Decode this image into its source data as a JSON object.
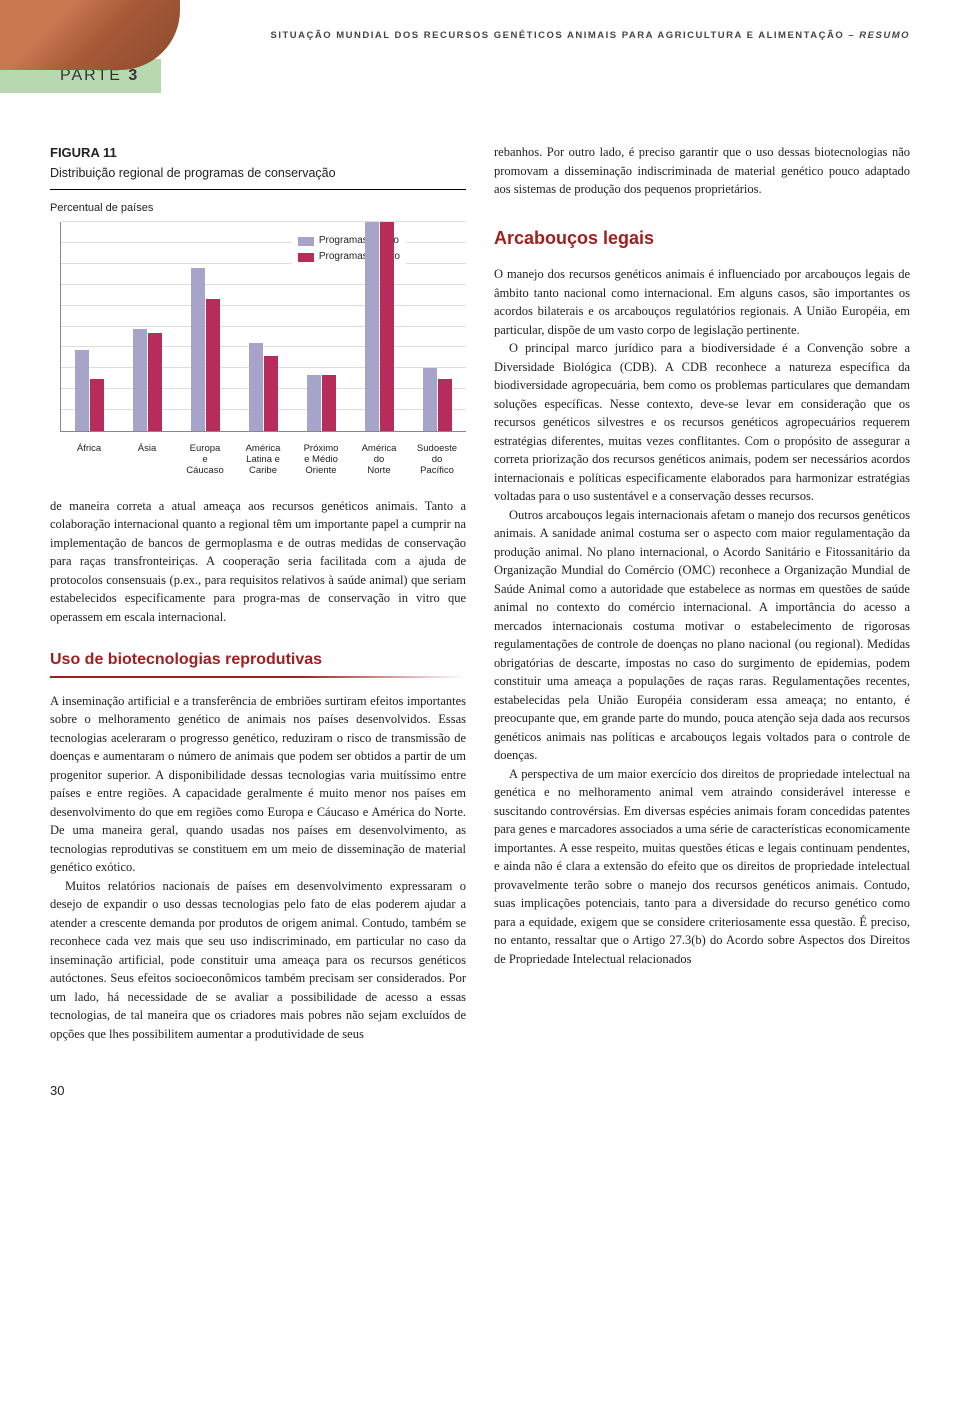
{
  "running_head": "SITUAÇÃO MUNDIAL DOS RECURSOS GENÉTICOS ANIMAIS PARA AGRICULTURA E ALIMENTAÇÃO",
  "running_head_suffix": "RESUMO",
  "parte_label": "PARTE",
  "parte_num": "3",
  "figure": {
    "label": "FIGURA 11",
    "title": "Distribuição regional de programas de conservação",
    "subtitle": "Percentual de países",
    "legend": [
      "Programas in vivo",
      "Programas in vitro"
    ],
    "categories": [
      "África",
      "Ásia",
      "Europa\ne\nCáucaso",
      "América\nLatina e\nCaribe",
      "Próximo\ne Médio\nOriente",
      "América\ndo\nNorte",
      "Sudoeste\ndo\nPacífico"
    ],
    "series_vivo": [
      39,
      49,
      78,
      42,
      27,
      100,
      30
    ],
    "series_vitro": [
      25,
      47,
      63,
      36,
      27,
      100,
      25
    ],
    "colors": {
      "vivo": "#a6a4c9",
      "vitro": "#b82c5b"
    },
    "ylim": 100,
    "gridline_color": "#dddddd"
  },
  "left": {
    "p1": "de maneira correta a atual ameaça aos recursos genéticos animais. Tanto a colaboração internacional quanto a regional têm um importante papel a cumprir na implementação de bancos de germoplasma e de outras medidas de conservação para raças transfronteiriças. A cooperação seria facilitada com a ajuda de protocolos consensuais (p.ex., para requisitos relativos à saúde animal) que seriam estabelecidos especificamente para progra-mas de conservação in vitro que operassem em escala internacional.",
    "h2": "Uso de biotecnologias reprodutivas",
    "p2": "A inseminação artificial e a transferência de embriões surtiram efeitos importantes sobre o melhoramento genético de animais nos países desenvolvidos. Essas tecnologias aceleraram o progresso genético, reduziram o risco de transmissão de doenças e aumentaram o número de animais que podem ser obtidos a partir de um progenitor superior. A disponibilidade dessas tecnologias varia muitíssimo entre países e entre regiões. A capacidade geralmente é muito menor nos países em desenvolvimento do que em regiões como Europa e Cáucaso e América do Norte. De uma maneira geral, quando usadas nos países em desenvolvimento, as tecnologias reprodutivas se constituem em um meio de disseminação de material genético exótico.",
    "p3": "Muitos relatórios nacionais de países em desenvolvimento expressaram o desejo de expandir o uso dessas tecnologias pelo fato de elas poderem ajudar a atender a crescente demanda por produtos de origem animal. Contudo, também se reconhece cada vez mais que seu uso indiscriminado, em particular no caso da inseminação artificial, pode constituir uma ameaça para os recursos genéticos autóctones. Seus efeitos socioeconômicos também precisam ser considerados. Por um lado, há necessidade de se avaliar a possibilidade de acesso a essas tecnologias, de tal maneira que os criadores mais pobres não sejam excluídos de opções que lhes possibilitem aumentar a produtividade de seus"
  },
  "right": {
    "p0": "rebanhos. Por outro lado, é preciso garantir que o uso dessas biotecnologias não promovam a disseminação indiscriminada de material genético pouco adaptado aos sistemas de produção dos pequenos proprietários.",
    "section": "Arcabouços legais",
    "p1": "O manejo dos recursos genéticos animais é influenciado por arcabouços legais de âmbito tanto nacional como internacional. Em alguns casos, são importantes os acordos bilaterais e os arcabouços regulatórios regionais. A União Européia, em particular, dispõe de um vasto corpo de legislação pertinente.",
    "p2": "O principal marco jurídico para a biodiversidade é a Convenção sobre a Diversidade Biológica (CDB). A CDB reconhece a natureza específica da biodiversidade agropecuária, bem como os problemas particulares que demandam soluções específicas. Nesse contexto, deve-se levar em consideração que os recursos genéticos silvestres e os recursos genéticos agropecuários requerem estratégias diferentes, muitas vezes conflitantes. Com o propósito de assegurar a correta priorização dos recursos genéticos animais, podem ser necessários acordos internacionais e políticas especificamente elaborados para harmonizar estratégias voltadas para o uso sustentável e a conservação desses recursos.",
    "p3": "Outros arcabouços legais internacionais afetam o manejo dos recursos genéticos animais. A sanidade animal costuma ser o aspecto com maior regulamentação da produção animal. No plano internacional, o Acordo Sanitário e Fitossanitário da Organização Mundial do Comércio (OMC) reconhece a Organização Mundial de Saúde Animal como a autoridade que estabelece as normas em questões de saúde animal no contexto do comércio internacional. A importância do acesso a mercados internacionais costuma motivar o estabelecimento de rigorosas regulamentações de controle de doenças no plano nacional (ou regional). Medidas obrigatórias de descarte, impostas no caso do surgimento de epidemias, podem constituir uma ameaça a populações de raças raras. Regulamentações recentes, estabelecidas pela União Européia consideram essa ameaça; no entanto, é preocupante que, em grande parte do mundo, pouca atenção seja dada aos recursos genéticos animais nas políticas e arcabouços legais voltados para o controle de doenças.",
    "p4": "A perspectiva de um maior exercício dos direitos de propriedade intelectual na genética e no melhoramento animal vem atraindo considerável interesse e suscitando controvérsias. Em diversas espécies animais foram concedidas patentes para genes e marcadores associados a uma série de características economicamente importantes. A esse respeito, muitas questões éticas e legais continuam pendentes, e ainda não é clara a extensão do efeito que os direitos de propriedade intelectual provavelmente terão sobre o manejo dos recursos genéticos animais. Contudo, suas implicações potenciais, tanto para a diversidade do recurso genético como para a equidade, exigem que se considere criteriosamente essa questão. É preciso, no entanto, ressaltar que o Artigo 27.3(b) do Acordo sobre Aspectos dos Direitos de Propriedade Intelectual relacionados"
  },
  "page_number": "30"
}
